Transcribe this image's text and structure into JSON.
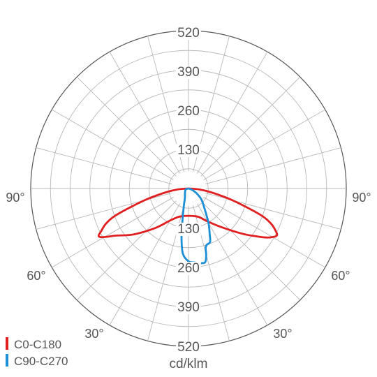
{
  "chart_data": {
    "type": "polar",
    "unit_label": "cd/klm",
    "radial_ticks": [
      "130",
      "260",
      "390",
      "520"
    ],
    "radial_max": 520,
    "angle_labels": {
      "left_90": "90°",
      "right_90": "90°",
      "left_60": "60°",
      "right_60": "60°",
      "left_30": "30°",
      "right_30": "30°"
    },
    "grid": true,
    "legend_position": "bottom-left",
    "series": [
      {
        "name": "C0-C180",
        "color": "#e02020",
        "points": [
          {
            "angle": -90,
            "value": 0
          },
          {
            "angle": -85,
            "value": 35
          },
          {
            "angle": -80,
            "value": 80
          },
          {
            "angle": -75,
            "value": 150
          },
          {
            "angle": -70,
            "value": 250
          },
          {
            "angle": -67,
            "value": 295
          },
          {
            "angle": -64,
            "value": 320
          },
          {
            "angle": -62,
            "value": 335
          },
          {
            "angle": -60,
            "value": 320
          },
          {
            "angle": -57,
            "value": 285
          },
          {
            "angle": -50,
            "value": 235
          },
          {
            "angle": -40,
            "value": 170
          },
          {
            "angle": -30,
            "value": 122
          },
          {
            "angle": -20,
            "value": 100
          },
          {
            "angle": -10,
            "value": 92
          },
          {
            "angle": 0,
            "value": 90
          },
          {
            "angle": 10,
            "value": 92
          },
          {
            "angle": 20,
            "value": 100
          },
          {
            "angle": 30,
            "value": 125
          },
          {
            "angle": 40,
            "value": 165
          },
          {
            "angle": 50,
            "value": 232
          },
          {
            "angle": 55,
            "value": 275
          },
          {
            "angle": 58,
            "value": 305
          },
          {
            "angle": 60,
            "value": 320
          },
          {
            "angle": 62,
            "value": 330
          },
          {
            "angle": 64,
            "value": 320
          },
          {
            "angle": 67,
            "value": 295
          },
          {
            "angle": 70,
            "value": 250
          },
          {
            "angle": 75,
            "value": 150
          },
          {
            "angle": 80,
            "value": 80
          },
          {
            "angle": 85,
            "value": 35
          },
          {
            "angle": 90,
            "value": 0
          }
        ]
      },
      {
        "name": "C90-C270",
        "color": "#1c8fd6",
        "points": [
          {
            "angle": -90,
            "value": 0
          },
          {
            "angle": -70,
            "value": 10
          },
          {
            "angle": -40,
            "value": 18
          },
          {
            "angle": -20,
            "value": 35
          },
          {
            "angle": -15,
            "value": 60
          },
          {
            "angle": -10,
            "value": 120
          },
          {
            "angle": -8,
            "value": 165
          },
          {
            "angle": -5,
            "value": 215
          },
          {
            "angle": 0,
            "value": 240
          },
          {
            "angle": 5,
            "value": 245
          },
          {
            "angle": 10,
            "value": 250
          },
          {
            "angle": 13,
            "value": 248
          },
          {
            "angle": 15,
            "value": 225
          },
          {
            "angle": 16,
            "value": 205
          },
          {
            "angle": 18,
            "value": 195
          },
          {
            "angle": 22,
            "value": 190
          },
          {
            "angle": 25,
            "value": 165
          },
          {
            "angle": 30,
            "value": 132
          },
          {
            "angle": 40,
            "value": 80
          },
          {
            "angle": 50,
            "value": 55
          },
          {
            "angle": 60,
            "value": 30
          },
          {
            "angle": 70,
            "value": 12
          },
          {
            "angle": 90,
            "value": 0
          }
        ]
      }
    ]
  }
}
